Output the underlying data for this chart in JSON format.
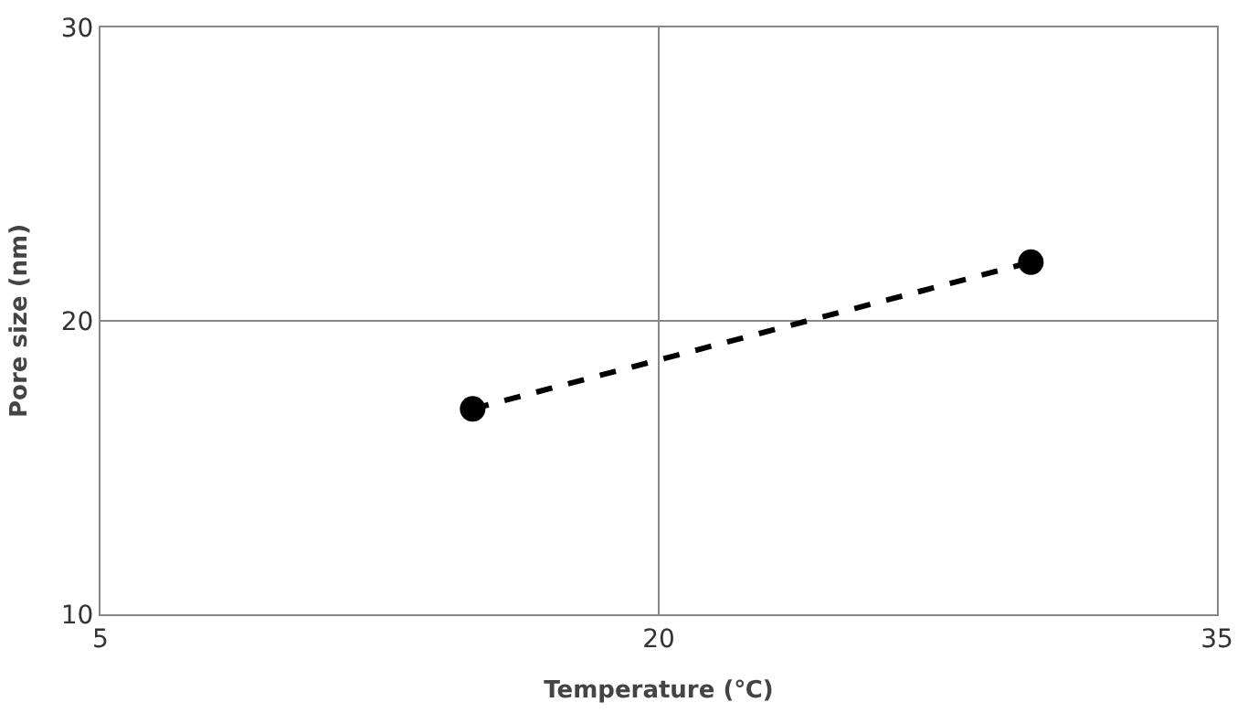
{
  "chart_data": {
    "type": "line",
    "xlabel": "Temperature (℃)",
    "ylabel": "Pore size (nm)",
    "x": [
      15,
      30
    ],
    "series": [
      {
        "color": "#000000",
        "values": [
          17,
          22
        ]
      }
    ],
    "xlim": [
      5,
      35
    ],
    "xticks": [
      5,
      20,
      35
    ],
    "ylim": [
      10,
      30
    ],
    "yticks": [
      10,
      20,
      30
    ],
    "grid": true,
    "marker": "circle",
    "line_style": "dashed",
    "legend": false
  }
}
